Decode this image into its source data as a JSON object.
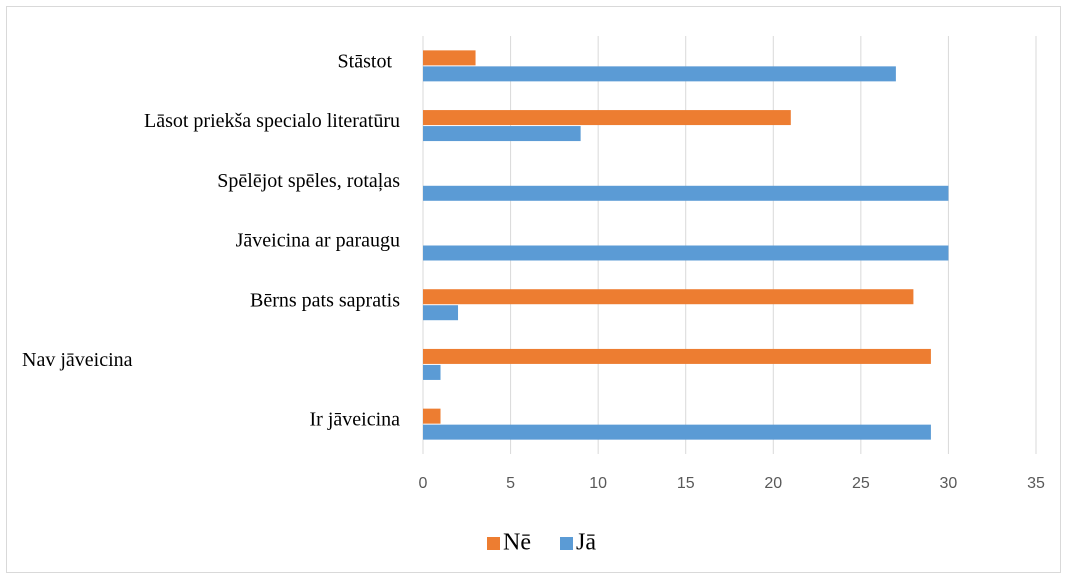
{
  "chart_data": {
    "type": "barh",
    "categories": [
      "Stāstot",
      "Lāsot priekša  specialo literatūru",
      "Spēlējot spēles, rotaļas",
      "Jāveicina ar paraugu",
      "Bērns pats sapratis",
      "Nav jāveicina",
      "Ir jāveicina"
    ],
    "series": [
      {
        "name": "Nē",
        "color": "#ed7d31",
        "values": [
          3,
          21,
          0,
          0,
          28,
          29,
          1
        ]
      },
      {
        "name": "Jā",
        "color": "#5b9bd5",
        "values": [
          27,
          9,
          30,
          30,
          2,
          1,
          29
        ]
      }
    ],
    "xlim": [
      0,
      35
    ],
    "xticks": [
      0,
      5,
      10,
      15,
      20,
      25,
      30,
      35
    ],
    "grid": true,
    "legend": "bottom"
  }
}
